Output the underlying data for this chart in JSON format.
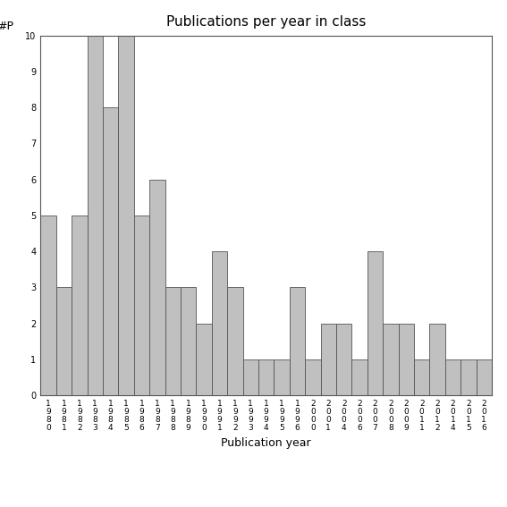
{
  "title": "Publications per year in class",
  "xlabel": "Publication year",
  "ylabel": "#P",
  "categories": [
    "1\n9\n8\n0",
    "1\n9\n8\n1",
    "1\n9\n8\n2",
    "1\n9\n8\n3",
    "1\n9\n8\n4",
    "1\n9\n8\n5",
    "1\n9\n8\n6",
    "1\n9\n8\n7",
    "1\n9\n8\n8",
    "1\n9\n8\n9",
    "1\n9\n9\n0",
    "1\n9\n9\n1",
    "1\n9\n9\n2",
    "1\n9\n9\n3",
    "1\n9\n9\n4",
    "1\n9\n9\n5",
    "1\n9\n9\n6",
    "2\n0\n0\n0",
    "2\n0\n0\n1",
    "2\n0\n0\n4",
    "2\n0\n0\n6",
    "2\n0\n0\n7",
    "2\n0\n0\n8",
    "2\n0\n0\n9",
    "2\n0\n1\n1",
    "2\n0\n1\n2",
    "2\n0\n1\n4",
    "2\n0\n1\n5",
    "2\n0\n1\n6"
  ],
  "values": [
    5,
    3,
    5,
    10,
    8,
    10,
    5,
    6,
    3,
    3,
    2,
    4,
    3,
    1,
    1,
    1,
    3,
    1,
    2,
    2,
    1,
    4,
    2,
    2,
    1,
    2,
    1,
    1,
    1
  ],
  "bar_color": "#c0c0c0",
  "bar_edge_color": "#555555",
  "ylim": [
    0,
    10
  ],
  "yticks": [
    0,
    1,
    2,
    3,
    4,
    5,
    6,
    7,
    8,
    9,
    10
  ],
  "background_color": "#ffffff",
  "title_fontsize": 11,
  "axis_label_fontsize": 9,
  "tick_fontsize": 6.5
}
